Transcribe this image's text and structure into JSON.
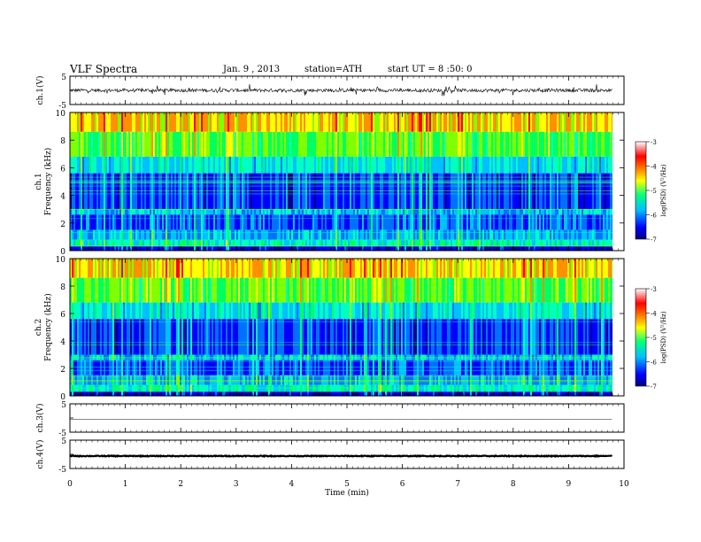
{
  "header": {
    "title": "VLF Spectra",
    "date": "Jan. 9 , 2013",
    "station": "station=ATH",
    "start": "start UT = 8 :50: 0"
  },
  "chart_data": [
    {
      "type": "line",
      "panel": "ch1-waveform",
      "ylabel": "ch.1(V)",
      "ylim": [
        -5,
        5
      ],
      "yticks": [
        "5",
        "-5"
      ],
      "xlim": [
        0,
        10
      ]
    },
    {
      "type": "heatmap",
      "panel": "ch1-spectrogram",
      "ylabel": "Frequency (kHz)",
      "ylabel_ch": "ch.1",
      "ylim": [
        0,
        10
      ],
      "yticks": [
        "0",
        "2",
        "4",
        "6",
        "8",
        "10"
      ],
      "xlim": [
        0,
        10
      ],
      "colorbar": {
        "label": "log(PSD) (V²/Hz)",
        "range": [
          -7,
          -3
        ],
        "ticks": [
          "-3",
          "-4",
          "-5",
          "-6",
          "-7"
        ]
      }
    },
    {
      "type": "heatmap",
      "panel": "ch2-spectrogram",
      "ylabel": "Frequency (kHz)",
      "ylabel_ch": "ch.2",
      "ylim": [
        0,
        10
      ],
      "yticks": [
        "0",
        "2",
        "4",
        "6",
        "8",
        "10"
      ],
      "xlim": [
        0,
        10
      ],
      "colorbar": {
        "label": "log(PSD) (V²/Hz)",
        "range": [
          -7,
          -3
        ],
        "ticks": [
          "-3",
          "-4",
          "-5",
          "-6",
          "-7"
        ]
      }
    },
    {
      "type": "line",
      "panel": "ch3-waveform",
      "ylabel": "ch.3(V)",
      "ylim": [
        -5,
        5
      ],
      "yticks": [
        "5",
        "-5"
      ],
      "xlim": [
        0,
        10
      ]
    },
    {
      "type": "line",
      "panel": "ch4-waveform",
      "ylabel": "ch.4(V)",
      "ylim": [
        -5,
        5
      ],
      "yticks": [
        "5",
        "-5"
      ],
      "xlim": [
        0,
        10
      ],
      "xlabel": "Time (min)",
      "xticks": [
        "0",
        "1",
        "2",
        "3",
        "4",
        "5",
        "6",
        "7",
        "8",
        "9",
        "10"
      ]
    }
  ]
}
